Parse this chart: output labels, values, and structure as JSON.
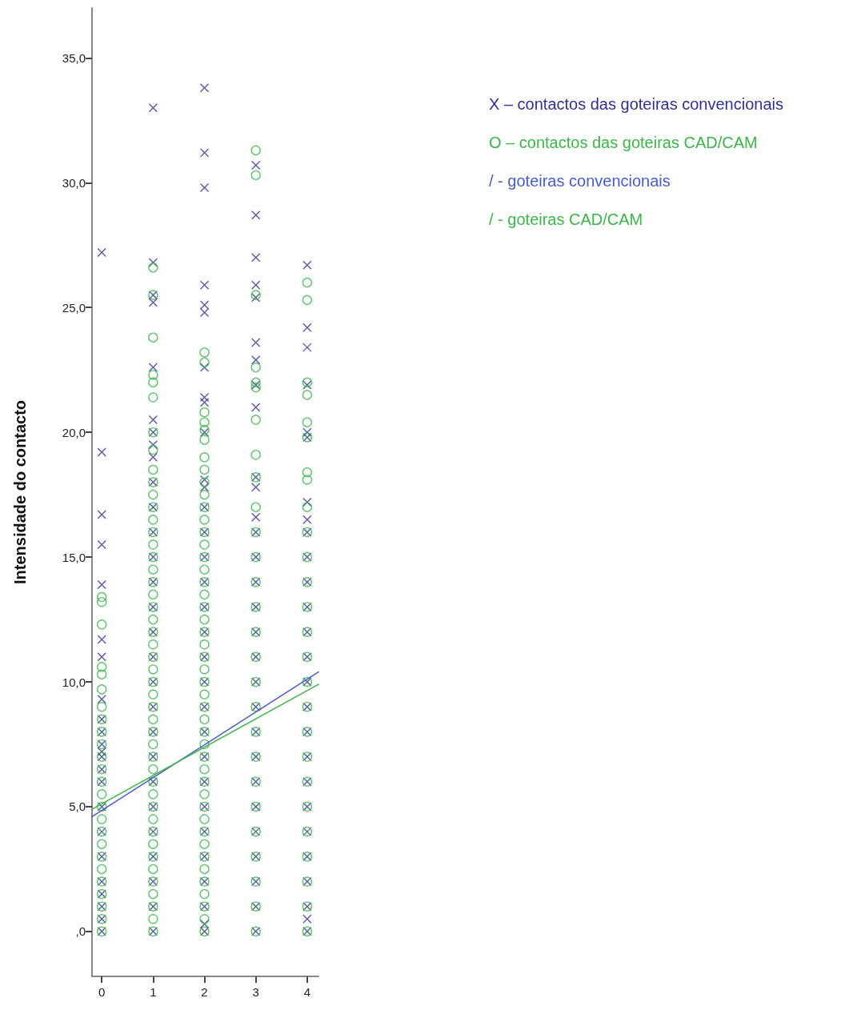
{
  "chart_data": {
    "type": "scatter",
    "ylabel": "Intensidade do contacto",
    "xlim": [
      -0.19,
      4.22
    ],
    "ylim": [
      -1.8,
      37
    ],
    "xticks": [
      0,
      1,
      2,
      3,
      4
    ],
    "yticks": [
      {
        "value": 0,
        "label": ",0"
      },
      {
        "value": 5,
        "label": "5,0"
      },
      {
        "value": 10,
        "label": "10,0"
      },
      {
        "value": 15,
        "label": "15,0"
      },
      {
        "value": 20,
        "label": "20,0"
      },
      {
        "value": 25,
        "label": "25,0"
      },
      {
        "value": 30,
        "label": "30,0"
      },
      {
        "value": 35,
        "label": "35,0"
      }
    ],
    "grid": false,
    "legend": "right",
    "series": [
      {
        "name": "X – contactos das goteiras convencionais",
        "marker": "cross",
        "color": "#2e3192",
        "x": [
          0,
          0,
          0,
          0,
          0,
          0,
          0,
          0,
          0,
          0,
          0,
          0,
          0,
          0,
          0,
          0,
          0,
          0,
          0,
          0,
          0,
          0,
          0,
          1,
          1,
          1,
          1,
          1,
          1,
          1,
          1,
          1,
          1,
          1,
          1,
          1,
          1,
          1,
          1,
          1,
          1,
          1,
          1,
          1,
          1,
          1,
          1,
          1,
          1,
          1,
          1,
          2,
          2,
          2,
          2,
          2,
          2,
          2,
          2,
          2,
          2,
          2,
          2,
          2,
          2,
          2,
          2,
          2,
          2,
          2,
          2,
          2,
          2,
          2,
          2,
          2,
          2,
          2,
          2,
          2,
          2,
          2,
          3,
          3,
          3,
          3,
          3,
          3,
          3,
          3,
          3,
          3,
          3,
          3,
          3,
          3,
          3,
          3,
          3,
          3,
          3,
          3,
          3,
          3,
          3,
          3,
          3,
          3,
          3,
          3,
          3,
          4,
          4,
          4,
          4,
          4,
          4,
          4,
          4,
          4,
          4,
          4,
          4,
          4,
          4,
          4,
          4,
          4,
          4,
          4,
          4,
          4,
          4,
          4,
          4,
          4,
          4
        ],
        "values": [
          27.2,
          19.2,
          16.7,
          15.5,
          13.9,
          11.7,
          11.0,
          9.3,
          8.5,
          8.0,
          7.5,
          7.2,
          7.0,
          6.5,
          6.0,
          5.0,
          4.0,
          3.0,
          2.0,
          1.5,
          1.0,
          0.5,
          0,
          33.0,
          26.8,
          25.5,
          25.2,
          22.6,
          20.5,
          20.0,
          19.5,
          19.0,
          18.0,
          17.0,
          16.0,
          15.0,
          14.0,
          13.0,
          12.0,
          11.0,
          10.0,
          9.0,
          8.0,
          7.0,
          6.0,
          5.0,
          4.0,
          3.0,
          2.0,
          1.0,
          0,
          33.8,
          31.2,
          29.8,
          25.9,
          25.1,
          24.8,
          22.6,
          21.4,
          21.2,
          20.0,
          18.1,
          17.8,
          17.0,
          16.0,
          15.0,
          14.0,
          13.0,
          12.0,
          11.0,
          10.0,
          9.0,
          8.0,
          7.0,
          6.0,
          5.0,
          4.0,
          3.0,
          2.0,
          1.0,
          0.3,
          0,
          30.7,
          28.7,
          27.0,
          25.9,
          25.4,
          23.6,
          22.9,
          21.9,
          21.0,
          18.2,
          17.8,
          16.6,
          16.0,
          15.0,
          14.0,
          13.0,
          12.0,
          11.0,
          10.0,
          9.0,
          8.0,
          7.0,
          6.0,
          5.0,
          4.0,
          3.0,
          2.0,
          1.0,
          0,
          26.7,
          24.2,
          23.4,
          21.9,
          20.0,
          19.8,
          17.2,
          16.5,
          16.0,
          15.0,
          14.0,
          13.0,
          12.0,
          11.0,
          10.0,
          9.0,
          8.0,
          7.0,
          6.0,
          5.0,
          4.0,
          3.0,
          2.0,
          1.0,
          0.5,
          0
        ]
      },
      {
        "name": "O – contactos das goteiras CAD/CAM",
        "marker": "circle",
        "color": "#3cb54a",
        "x": [
          0,
          0,
          0,
          0,
          0,
          0,
          0,
          0,
          0,
          0,
          0,
          0,
          0,
          0,
          0,
          0,
          0,
          0,
          0,
          0,
          0,
          0,
          0,
          0,
          0,
          1,
          1,
          1,
          1,
          1,
          1,
          1,
          1,
          1,
          1,
          1,
          1,
          1,
          1,
          1,
          1,
          1,
          1,
          1,
          1,
          1,
          1,
          1,
          1,
          1,
          1,
          1,
          1,
          1,
          1,
          1,
          1,
          1,
          1,
          1,
          1,
          1,
          1,
          1,
          1,
          1,
          1,
          1,
          1,
          1,
          1,
          2,
          2,
          2,
          2,
          2,
          2,
          2,
          2,
          2,
          2,
          2,
          2,
          2,
          2,
          2,
          2,
          2,
          2,
          2,
          2,
          2,
          2,
          2,
          2,
          2,
          2,
          2,
          2,
          2,
          2,
          2,
          2,
          2,
          2,
          2,
          2,
          2,
          2,
          2,
          2,
          2,
          2,
          2,
          2,
          2,
          3,
          3,
          3,
          3,
          3,
          3,
          3,
          3,
          3,
          3,
          3,
          3,
          3,
          3,
          3,
          3,
          3,
          3,
          3,
          3,
          3,
          3,
          3,
          3,
          3,
          3,
          3,
          4,
          4,
          4,
          4,
          4,
          4,
          4,
          4,
          4,
          4,
          4,
          4,
          4,
          4,
          4,
          4,
          4,
          4,
          4,
          4,
          4,
          4,
          4,
          4,
          4,
          4
        ],
        "values": [
          13.4,
          13.2,
          12.3,
          10.6,
          10.3,
          9.7,
          9.0,
          8.5,
          8.0,
          7.5,
          7.0,
          6.5,
          6.0,
          5.5,
          5.0,
          4.5,
          4.0,
          3.5,
          3.0,
          2.5,
          2.0,
          1.5,
          1.0,
          0.5,
          0,
          26.6,
          25.5,
          23.8,
          22.3,
          22.0,
          21.4,
          20.0,
          19.3,
          18.5,
          18.0,
          17.5,
          17.0,
          16.5,
          16.0,
          15.5,
          15.0,
          14.5,
          14.0,
          13.5,
          13.0,
          12.5,
          12.0,
          11.5,
          11.0,
          10.5,
          10.0,
          9.5,
          9.0,
          8.5,
          8.0,
          7.5,
          7.0,
          6.5,
          6.0,
          5.5,
          5.0,
          4.5,
          4.0,
          3.5,
          3.0,
          2.5,
          2.0,
          1.5,
          1.0,
          0.5,
          0,
          23.2,
          22.8,
          20.8,
          20.4,
          20.1,
          19.7,
          19.0,
          18.5,
          18.0,
          17.5,
          17.0,
          16.5,
          16.0,
          15.5,
          15.0,
          14.5,
          14.0,
          13.5,
          13.0,
          12.5,
          12.0,
          11.5,
          11.0,
          10.5,
          10.0,
          9.5,
          9.0,
          8.5,
          8.0,
          7.5,
          7.0,
          6.5,
          6.0,
          5.5,
          5.0,
          4.5,
          4.0,
          3.5,
          3.0,
          2.5,
          2.0,
          1.5,
          1.0,
          0.5,
          0,
          31.3,
          30.3,
          25.5,
          22.6,
          22.0,
          21.8,
          20.5,
          19.1,
          18.2,
          17.0,
          16.0,
          15.0,
          14.0,
          13.0,
          12.0,
          11.0,
          10.0,
          9.0,
          8.0,
          7.0,
          6.0,
          5.0,
          4.0,
          3.0,
          2.0,
          1.0,
          0,
          26.0,
          25.3,
          22.0,
          21.5,
          20.4,
          19.8,
          18.4,
          18.1,
          17.0,
          16.0,
          15.0,
          14.0,
          13.0,
          12.0,
          11.0,
          10.0,
          9.0,
          8.0,
          7.0,
          6.0,
          5.0,
          4.0,
          3.0,
          2.0,
          1.0,
          0
        ]
      },
      {
        "name": "/ - goteiras convencionais",
        "type": "line",
        "marker": "none",
        "line_style": "solid",
        "color": "#4a5cc4",
        "x": [
          -0.19,
          4.22
        ],
        "values": [
          4.6,
          10.4
        ]
      },
      {
        "name": "/ - goteiras CAD/CAM",
        "type": "line",
        "marker": "none",
        "line_style": "solid",
        "color": "#3cb54a",
        "x": [
          -0.19,
          4.22
        ],
        "values": [
          4.9,
          9.9
        ]
      }
    ]
  }
}
